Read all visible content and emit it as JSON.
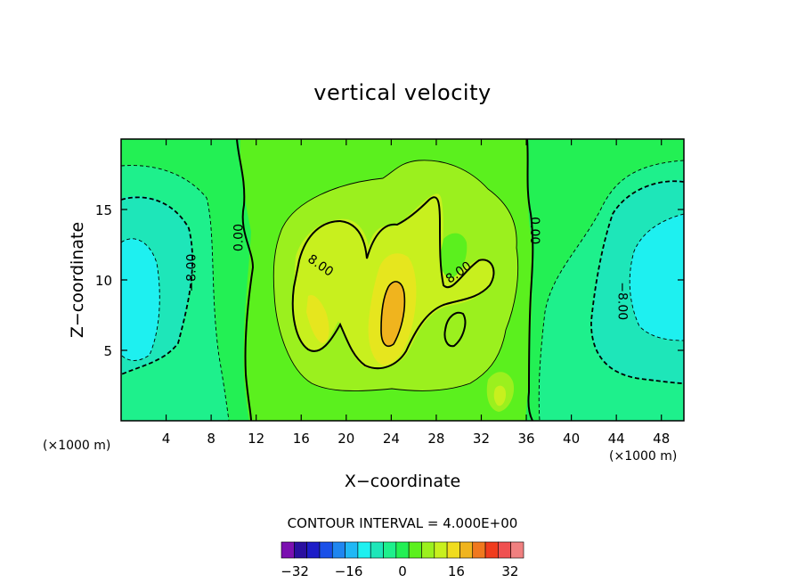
{
  "chart_data": {
    "type": "contour",
    "title": "vertical velocity",
    "xlabel": "X−coordinate",
    "ylabel": "Z−coordinate",
    "x_unit_left": "(×1000 m)",
    "x_unit_right": "(×1000 m)",
    "xlim": [
      0,
      50
    ],
    "ylim": [
      0,
      20
    ],
    "x_ticks": [
      {
        "value": 4,
        "label": "4"
      },
      {
        "value": 8,
        "label": "8"
      },
      {
        "value": 12,
        "label": "12"
      },
      {
        "value": 16,
        "label": "16"
      },
      {
        "value": 20,
        "label": "20"
      },
      {
        "value": 24,
        "label": "24"
      },
      {
        "value": 28,
        "label": "28"
      },
      {
        "value": 32,
        "label": "32"
      },
      {
        "value": 36,
        "label": "36"
      },
      {
        "value": 40,
        "label": "40"
      },
      {
        "value": 44,
        "label": "44"
      },
      {
        "value": 48,
        "label": "48"
      }
    ],
    "y_ticks": [
      {
        "value": 5,
        "label": "5"
      },
      {
        "value": 10,
        "label": "10"
      },
      {
        "value": 15,
        "label": "15"
      }
    ],
    "contour_interval_text": "CONTOUR INTERVAL = 4.000E+00",
    "contour_labels": [
      {
        "text": "0.00",
        "x": 10.5,
        "z": 13.0
      },
      {
        "text": "8.00",
        "x": 17.7,
        "z": 11.0
      },
      {
        "text": "8.00",
        "x": 30.0,
        "z": 10.5
      },
      {
        "text": "0.00",
        "x": 36.7,
        "z": 13.5
      },
      {
        "text": "−8.00",
        "x": 6.3,
        "z": 10.5
      },
      {
        "text": "−8.00",
        "x": 44.5,
        "z": 8.5
      }
    ],
    "colorbar": {
      "min": -36,
      "max": 36,
      "step": 4,
      "colors": [
        "#7b0fb0",
        "#2a0fa0",
        "#1d1dc8",
        "#1a50e8",
        "#1f86f0",
        "#20b8f5",
        "#1ef0f0",
        "#1ee6b9",
        "#1ef08c",
        "#23f054",
        "#5bf01e",
        "#9bf01e",
        "#c8f01e",
        "#f0dc1e",
        "#f0b41e",
        "#f0781e",
        "#f03c1e",
        "#f05050",
        "#f08080"
      ],
      "ticks": [
        {
          "value": -32,
          "label": "−32"
        },
        {
          "value": -16,
          "label": "−16"
        },
        {
          "value": 0,
          "label": "0"
        },
        {
          "value": 16,
          "label": "16"
        },
        {
          "value": 32,
          "label": "32"
        }
      ]
    },
    "fields": {
      "background_level": "0 to 4",
      "positive_region": {
        "x_range": [
          11.5,
          35.5
        ],
        "z_range": [
          0,
          17.5
        ],
        "max_level": "16 to 20",
        "max_at": {
          "x": 24.5,
          "z": 8
        }
      },
      "negative_region_left": {
        "x_range": [
          0,
          11
        ],
        "min_level": "-20 to -16",
        "min_at": {
          "x": 1,
          "z": 10
        }
      },
      "negative_region_right": {
        "x_range": [
          36.5,
          50
        ],
        "min_level": "-16 to -12",
        "min_at": {
          "x": 49,
          "z": 10
        }
      }
    }
  }
}
